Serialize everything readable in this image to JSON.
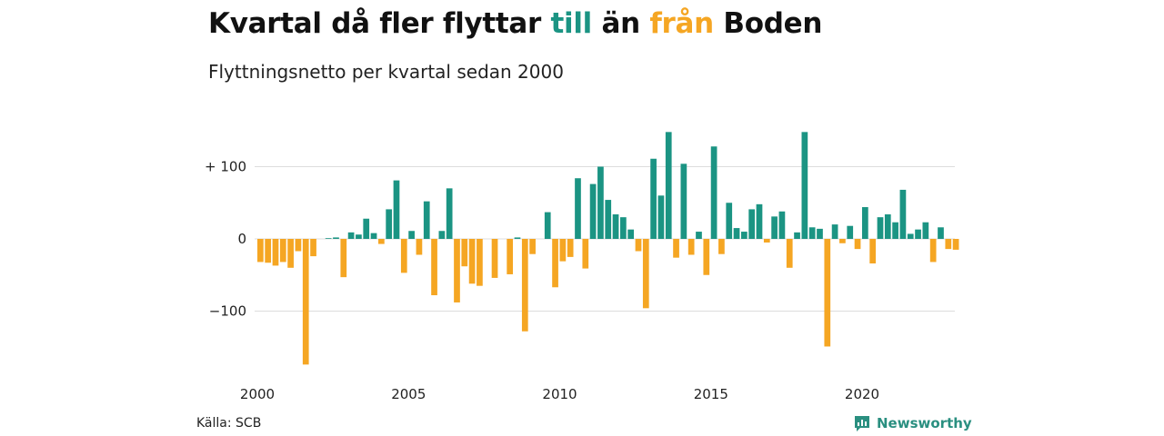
{
  "title": {
    "part1": "Kvartal då fler flyttar ",
    "till": "till",
    "part2": " än ",
    "fran": "från",
    "part3": " Boden"
  },
  "subtitle": "Flyttningsnetto per kvartal sedan 2000",
  "source": "Källa: SCB",
  "brand": {
    "name": "Newsworthy",
    "icon": "newsworthy-logo-icon"
  },
  "colors": {
    "positive": "#1b9483",
    "negative": "#f5a623",
    "grid": "#dddddd"
  },
  "chart_data": {
    "type": "bar",
    "title": "Kvartal då fler flyttar till än från Boden",
    "subtitle": "Flyttningsnetto per kvartal sedan 2000",
    "ylim": [
      -175,
      150
    ],
    "yticks": [
      100,
      0,
      -100
    ],
    "ytick_labels": [
      "+ 100",
      "0",
      "−100"
    ],
    "xticks": [
      2000,
      2005,
      2010,
      2015,
      2020
    ],
    "grid": true,
    "x_start": "2000 Q1",
    "categories": [
      "2000 Q1",
      "2000 Q2",
      "2000 Q3",
      "2000 Q4",
      "2001 Q1",
      "2001 Q2",
      "2001 Q3",
      "2001 Q4",
      "2002 Q1",
      "2002 Q2",
      "2002 Q3",
      "2002 Q4",
      "2003 Q1",
      "2003 Q2",
      "2003 Q3",
      "2003 Q4",
      "2004 Q1",
      "2004 Q2",
      "2004 Q3",
      "2004 Q4",
      "2005 Q1",
      "2005 Q2",
      "2005 Q3",
      "2005 Q4",
      "2006 Q1",
      "2006 Q2",
      "2006 Q3",
      "2006 Q4",
      "2007 Q1",
      "2007 Q2",
      "2007 Q3",
      "2007 Q4",
      "2008 Q1",
      "2008 Q2",
      "2008 Q3",
      "2008 Q4",
      "2009 Q1",
      "2009 Q2",
      "2009 Q3",
      "2009 Q4",
      "2010 Q1",
      "2010 Q2",
      "2010 Q3",
      "2010 Q4",
      "2011 Q1",
      "2011 Q2",
      "2011 Q3",
      "2011 Q4",
      "2012 Q1",
      "2012 Q2",
      "2012 Q3",
      "2012 Q4",
      "2013 Q1",
      "2013 Q2",
      "2013 Q3",
      "2013 Q4",
      "2014 Q1",
      "2014 Q2",
      "2014 Q3",
      "2014 Q4",
      "2015 Q1",
      "2015 Q2",
      "2015 Q3",
      "2015 Q4",
      "2016 Q1",
      "2016 Q2",
      "2016 Q3",
      "2016 Q4",
      "2017 Q1",
      "2017 Q2",
      "2017 Q3",
      "2017 Q4",
      "2018 Q1",
      "2018 Q2",
      "2018 Q3",
      "2018 Q4",
      "2019 Q1",
      "2019 Q2",
      "2019 Q3",
      "2019 Q4",
      "2020 Q1",
      "2020 Q2",
      "2020 Q3",
      "2020 Q4",
      "2021 Q1",
      "2021 Q2",
      "2021 Q3",
      "2021 Q4",
      "2022 Q1",
      "2022 Q2",
      "2022 Q3",
      "2022 Q4",
      "2023 Q1"
    ],
    "values": [
      -32,
      -33,
      -37,
      -32,
      -40,
      -17,
      -174,
      -24,
      0,
      1,
      2,
      -53,
      9,
      6,
      28,
      8,
      -7,
      41,
      81,
      -47,
      11,
      -22,
      52,
      -78,
      11,
      70,
      -88,
      -38,
      -62,
      -65,
      0,
      -54,
      0,
      -49,
      2,
      -128,
      -21,
      0,
      37,
      -67,
      -31,
      -25,
      84,
      -41,
      76,
      100,
      54,
      34,
      30,
      13,
      -17,
      -96,
      111,
      60,
      148,
      -26,
      104,
      -22,
      10,
      -50,
      128,
      -21,
      50,
      15,
      10,
      41,
      48,
      -5,
      31,
      38,
      -40,
      9,
      148,
      16,
      14,
      -149,
      20,
      -6,
      18,
      -14,
      44,
      -34,
      30,
      34,
      23,
      68,
      7,
      13,
      23,
      -32,
      16,
      -14,
      -15
    ]
  }
}
